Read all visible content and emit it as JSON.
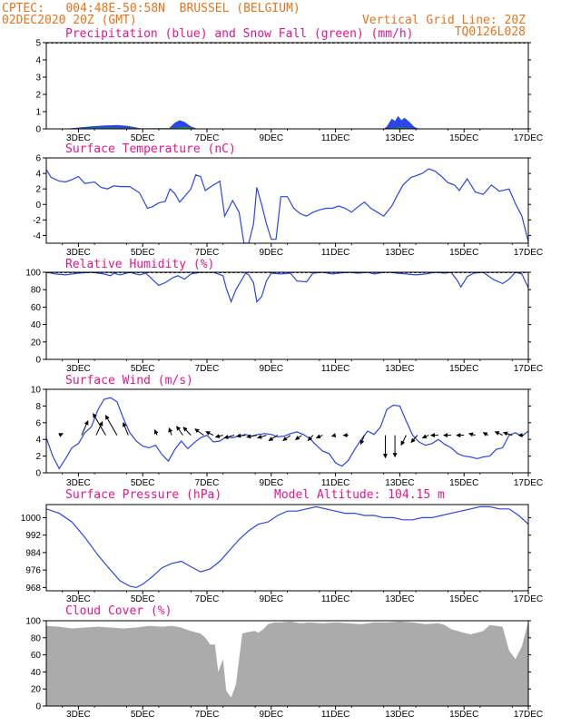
{
  "header": {
    "line1_left": "CPTEC:   004:48E-50:58N  BRUSSEL (BELGIUM)",
    "line2_left": "02DEC2020 20Z (GMT)",
    "line1_right": "Vertical Grid Line: 20Z",
    "line2_right": "TQ0126L028"
  },
  "colors": {
    "header": "#e8731a",
    "title": "#e6148c",
    "line": "#2a46e8",
    "precip": "#2a46e8",
    "snow": "#22a822",
    "cloud": "#ababab"
  },
  "x_tick_labels": [
    "3DEC",
    "5DEC",
    "7DEC",
    "9DEC",
    "11DEC",
    "13DEC",
    "15DEC",
    "17DEC"
  ],
  "chart_data": [
    {
      "id": "precip",
      "type": "area",
      "title": "Precipitation (blue) and Snow Fall (green) (mm/h)",
      "ylim": [
        0,
        5
      ],
      "yticks": [
        0,
        1,
        2,
        3,
        4,
        5
      ],
      "series": [
        {
          "name": "Precipitation",
          "x": [
            2.0,
            2.6,
            3.0,
            3.4,
            3.8,
            4.2,
            4.5,
            4.7,
            5.0,
            5.8,
            6.0,
            6.15,
            6.3,
            6.5,
            6.7,
            12.5,
            12.6,
            12.75,
            12.85,
            12.95,
            13.05,
            13.15,
            13.3,
            13.45,
            13.6
          ],
          "values": [
            0,
            0,
            0.08,
            0.15,
            0.2,
            0.22,
            0.18,
            0.12,
            0,
            0,
            0.35,
            0.5,
            0.4,
            0.15,
            0,
            0,
            0.15,
            0.6,
            0.45,
            0.75,
            0.5,
            0.65,
            0.4,
            0.12,
            0
          ]
        },
        {
          "name": "Snow Fall",
          "x": [
            2.0,
            3.0,
            4.0,
            5.0,
            6.0,
            6.3,
            6.7,
            12.5,
            13.0,
            13.6
          ],
          "values": [
            0,
            0.04,
            0.06,
            0.03,
            0.05,
            0.1,
            0,
            0,
            0.08,
            0
          ]
        }
      ]
    },
    {
      "id": "temp",
      "type": "line",
      "title": "Surface Temperature (nC)",
      "ylim": [
        -5,
        6
      ],
      "yticks": [
        -4,
        -2,
        0,
        2,
        4,
        6
      ],
      "x": [
        2.0,
        2.15,
        2.4,
        2.6,
        2.8,
        3.0,
        3.2,
        3.5,
        3.7,
        3.9,
        4.1,
        4.3,
        4.6,
        4.9,
        5.15,
        5.3,
        5.5,
        5.7,
        5.85,
        6.0,
        6.15,
        6.3,
        6.5,
        6.65,
        6.8,
        6.95,
        7.2,
        7.4,
        7.55,
        7.8,
        8.0,
        8.15,
        8.3,
        8.45,
        8.55,
        8.7,
        8.85,
        9.0,
        9.15,
        9.3,
        9.5,
        9.7,
        9.9,
        10.1,
        10.3,
        10.5,
        10.7,
        10.9,
        11.1,
        11.3,
        11.5,
        11.7,
        11.9,
        12.1,
        12.3,
        12.5,
        12.75,
        12.9,
        13.1,
        13.35,
        13.5,
        13.7,
        13.9,
        14.1,
        14.3,
        14.5,
        14.7,
        14.85,
        15.1,
        15.35,
        15.6,
        15.85,
        16.1,
        16.4,
        16.6,
        16.8,
        17.0
      ],
      "values": [
        4.5,
        3.5,
        3.0,
        2.9,
        3.2,
        3.6,
        2.7,
        2.9,
        2.2,
        2.0,
        2.4,
        2.3,
        2.3,
        1.5,
        -0.5,
        -0.3,
        0.2,
        0.4,
        2.0,
        1.4,
        0.3,
        1.0,
        2.0,
        3.8,
        3.6,
        1.8,
        2.5,
        3.0,
        -1.5,
        0.5,
        -1.0,
        -5.0,
        -5.0,
        -2.5,
        2.2,
        0,
        -2.5,
        -4.5,
        -4.5,
        1.0,
        1.0,
        -0.5,
        -1.2,
        -1.5,
        -1.0,
        -0.7,
        -0.5,
        -0.5,
        -0.2,
        -0.5,
        -1.0,
        -0.3,
        0.3,
        -0.5,
        -1.0,
        -1.5,
        -0.2,
        1.0,
        2.5,
        3.5,
        3.7,
        4.0,
        4.6,
        4.3,
        3.6,
        2.8,
        2.5,
        1.8,
        3.3,
        1.6,
        1.3,
        2.5,
        1.7,
        2.0,
        0.1,
        -1.5,
        -4.8
      ]
    },
    {
      "id": "rh",
      "type": "line",
      "title": "Relative Humidity (%)",
      "ylim": [
        0,
        100
      ],
      "yticks": [
        0,
        20,
        40,
        60,
        80,
        100
      ],
      "x": [
        2.0,
        2.3,
        2.6,
        3.0,
        3.4,
        3.8,
        4.0,
        4.1,
        4.3,
        4.6,
        4.9,
        5.1,
        5.35,
        5.5,
        5.7,
        5.95,
        6.1,
        6.3,
        6.5,
        6.8,
        7.2,
        7.5,
        7.6,
        7.75,
        7.9,
        8.2,
        8.3,
        8.45,
        8.55,
        8.7,
        8.85,
        9.0,
        9.3,
        9.6,
        9.8,
        10.1,
        10.3,
        10.6,
        10.9,
        11.1,
        11.4,
        11.7,
        12.0,
        12.2,
        12.5,
        12.7,
        12.9,
        13.2,
        13.5,
        13.8,
        14.1,
        14.4,
        14.6,
        14.8,
        14.9,
        15.1,
        15.3,
        15.6,
        15.9,
        16.2,
        16.4,
        16.6,
        16.8,
        17.0
      ],
      "values": [
        100,
        98,
        97,
        99,
        100,
        98,
        96,
        99,
        97,
        100,
        97,
        99,
        90,
        85,
        88,
        94,
        96,
        92,
        98,
        100,
        100,
        96,
        82,
        66,
        80,
        99,
        97,
        88,
        66,
        72,
        90,
        99,
        98,
        99,
        90,
        89,
        99,
        100,
        98,
        99,
        100,
        99,
        100,
        98,
        100,
        100,
        99,
        98,
        97,
        98,
        100,
        99,
        100,
        90,
        83,
        95,
        99,
        100,
        92,
        87,
        92,
        100,
        98,
        82
      ]
    },
    {
      "id": "wind",
      "type": "line",
      "title": "Surface Wind (m/s)",
      "ylim": [
        0,
        10
      ],
      "yticks": [
        0,
        2,
        4,
        6,
        8,
        10
      ],
      "x": [
        2.0,
        2.2,
        2.4,
        2.6,
        2.8,
        3.0,
        3.2,
        3.4,
        3.6,
        3.8,
        4.0,
        4.2,
        4.4,
        4.6,
        4.8,
        5.0,
        5.2,
        5.4,
        5.6,
        5.8,
        6.0,
        6.2,
        6.4,
        6.6,
        6.8,
        7.0,
        7.2,
        7.4,
        7.6,
        7.8,
        8.0,
        8.2,
        8.4,
        8.6,
        8.8,
        9.0,
        9.2,
        9.4,
        9.6,
        9.8,
        10.0,
        10.2,
        10.4,
        10.6,
        10.8,
        11.0,
        11.2,
        11.4,
        11.6,
        11.8,
        12.0,
        12.2,
        12.4,
        12.6,
        12.8,
        13.0,
        13.2,
        13.4,
        13.6,
        13.8,
        14.0,
        14.2,
        14.4,
        14.6,
        14.8,
        15.0,
        15.2,
        15.4,
        15.6,
        15.8,
        16.0,
        16.2,
        16.4,
        16.6,
        16.8,
        17.0
      ],
      "values": [
        4.2,
        2.0,
        0.5,
        1.7,
        3.0,
        3.5,
        4.8,
        5.5,
        7.5,
        8.8,
        9.0,
        8.5,
        6.5,
        4.8,
        3.8,
        3.2,
        3.0,
        3.3,
        2.2,
        1.4,
        2.8,
        3.8,
        2.9,
        3.6,
        4.2,
        4.5,
        3.7,
        3.8,
        4.3,
        4.2,
        4.4,
        4.6,
        4.4,
        4.6,
        4.7,
        4.6,
        4.3,
        4.4,
        4.7,
        4.9,
        4.6,
        4.1,
        3.3,
        2.6,
        2.3,
        1.2,
        0.8,
        1.5,
        2.8,
        4.0,
        5.0,
        4.6,
        5.5,
        7.6,
        8.1,
        8.0,
        6.2,
        4.5,
        3.7,
        3.3,
        3.5,
        4.0,
        3.4,
        3.0,
        2.3,
        2.0,
        1.9,
        1.7,
        1.9,
        2.0,
        2.8,
        3.0,
        4.5,
        4.8,
        4.4,
        5.0
      ],
      "arrows": [
        {
          "x": 2.4,
          "dx": 0.3,
          "dy": -0.2
        },
        {
          "x": 3.1,
          "dx": 0.5,
          "dy": -1.6
        },
        {
          "x": 3.55,
          "dx": 0.5,
          "dy": -1.5
        },
        {
          "x": 3.85,
          "dx": -1.0,
          "dy": -2.4
        },
        {
          "x": 4.2,
          "dx": -0.9,
          "dy": -2.2
        },
        {
          "x": 4.55,
          "dx": -0.4,
          "dy": -1.4
        },
        {
          "x": 5.45,
          "dx": -0.2,
          "dy": -0.6
        },
        {
          "x": 5.9,
          "dx": -0.2,
          "dy": -0.8
        },
        {
          "x": 6.25,
          "dx": -0.5,
          "dy": -1.0
        },
        {
          "x": 6.5,
          "dx": -0.6,
          "dy": -0.9
        },
        {
          "x": 6.9,
          "dx": -0.7,
          "dy": -0.7
        },
        {
          "x": 7.2,
          "dx": -0.6,
          "dy": -0.4
        },
        {
          "x": 7.5,
          "dx": -0.6,
          "dy": 0.2
        },
        {
          "x": 7.85,
          "dx": -0.8,
          "dy": 0.3
        },
        {
          "x": 8.2,
          "dx": -0.7,
          "dy": 0.1
        },
        {
          "x": 8.55,
          "dx": -0.8,
          "dy": 0.2
        },
        {
          "x": 8.85,
          "dx": -0.7,
          "dy": 0.3
        },
        {
          "x": 9.2,
          "dx": -0.7,
          "dy": 0.6
        },
        {
          "x": 9.6,
          "dx": -0.6,
          "dy": 0.6
        },
        {
          "x": 9.95,
          "dx": -0.5,
          "dy": 0.5
        },
        {
          "x": 10.3,
          "dx": -0.4,
          "dy": 0.6
        },
        {
          "x": 10.6,
          "dx": -0.5,
          "dy": 0.3
        },
        {
          "x": 11.0,
          "dx": -0.3,
          "dy": 0.1
        },
        {
          "x": 11.4,
          "dx": -0.4,
          "dy": 0
        },
        {
          "x": 11.9,
          "dx": -0.3,
          "dy": 1.0
        },
        {
          "x": 12.55,
          "dx": 0,
          "dy": 2.5
        },
        {
          "x": 12.85,
          "dx": 0,
          "dy": 2.4
        },
        {
          "x": 13.2,
          "dx": -0.4,
          "dy": 1.1
        },
        {
          "x": 13.55,
          "dx": -0.5,
          "dy": 0.8
        },
        {
          "x": 13.9,
          "dx": -0.5,
          "dy": 0.3
        },
        {
          "x": 14.2,
          "dx": -0.6,
          "dy": 0
        },
        {
          "x": 14.6,
          "dx": -0.6,
          "dy": 0
        },
        {
          "x": 15.0,
          "dx": -0.6,
          "dy": 0
        },
        {
          "x": 15.35,
          "dx": -0.5,
          "dy": -0.2
        },
        {
          "x": 15.75,
          "dx": -0.4,
          "dy": -0.3
        },
        {
          "x": 16.2,
          "dx": -0.6,
          "dy": -0.4
        },
        {
          "x": 16.5,
          "dx": -0.7,
          "dy": -0.3
        },
        {
          "x": 16.85,
          "dx": -0.4,
          "dy": 0
        }
      ]
    },
    {
      "id": "press",
      "type": "line",
      "title": "Surface Pressure (hPa)",
      "extra_label": "Model Altitude: 104.15 m",
      "ylim": [
        966.5,
        1006
      ],
      "yticks": [
        968,
        976,
        984,
        992,
        1000
      ],
      "x": [
        2.0,
        2.4,
        2.8,
        3.2,
        3.6,
        4.0,
        4.3,
        4.6,
        4.8,
        5.0,
        5.3,
        5.6,
        5.9,
        6.2,
        6.5,
        6.8,
        7.1,
        7.4,
        7.7,
        8.0,
        8.3,
        8.6,
        8.9,
        9.2,
        9.5,
        9.8,
        10.1,
        10.4,
        10.7,
        11.0,
        11.3,
        11.6,
        11.9,
        12.2,
        12.5,
        12.8,
        13.1,
        13.4,
        13.7,
        14.0,
        14.3,
        14.6,
        14.9,
        15.2,
        15.5,
        15.8,
        16.1,
        16.4,
        16.7,
        17.0
      ],
      "values": [
        1004,
        1002,
        998,
        991,
        983,
        976,
        971,
        968.6,
        968,
        969.5,
        973,
        977,
        979,
        980,
        977.5,
        975.2,
        976.5,
        980,
        985,
        990,
        994,
        997,
        998,
        1001,
        1003,
        1003,
        1004,
        1005,
        1004,
        1003,
        1002,
        1002,
        1001,
        1001,
        1000,
        1000,
        999,
        999,
        1000,
        1000,
        1001,
        1002,
        1003,
        1004,
        1005,
        1005,
        1004,
        1004,
        1001,
        997
      ]
    },
    {
      "id": "cloud",
      "type": "area",
      "title": "Cloud Cover (%)",
      "ylim": [
        0,
        100
      ],
      "yticks": [
        0,
        20,
        40,
        60,
        80,
        100
      ],
      "x": [
        2.0,
        2.4,
        2.8,
        3.2,
        3.6,
        4.0,
        4.4,
        4.8,
        5.2,
        5.6,
        5.9,
        6.2,
        6.4,
        6.6,
        6.8,
        6.95,
        7.1,
        7.25,
        7.35,
        7.5,
        7.6,
        7.75,
        7.9,
        8.1,
        8.3,
        8.5,
        8.6,
        8.75,
        8.9,
        9.1,
        9.3,
        9.6,
        9.9,
        10.2,
        10.6,
        11.0,
        11.4,
        11.8,
        12.2,
        12.6,
        13.0,
        13.4,
        13.8,
        14.2,
        14.4,
        14.6,
        14.8,
        15.0,
        15.2,
        15.4,
        15.6,
        15.8,
        16.0,
        16.2,
        16.4,
        16.6,
        16.8,
        17.0
      ],
      "values": [
        94,
        93,
        91,
        92,
        93,
        92,
        91,
        92,
        94,
        93,
        94,
        92,
        89,
        87,
        85,
        80,
        72,
        72,
        40,
        55,
        18,
        10,
        25,
        85,
        87,
        88,
        86,
        90,
        96,
        98,
        98,
        99,
        97,
        98,
        97,
        98,
        97,
        96,
        98,
        98,
        99,
        98,
        96,
        97,
        95,
        90,
        88,
        86,
        84,
        86,
        88,
        95,
        94,
        93,
        65,
        55,
        70,
        99
      ]
    }
  ]
}
